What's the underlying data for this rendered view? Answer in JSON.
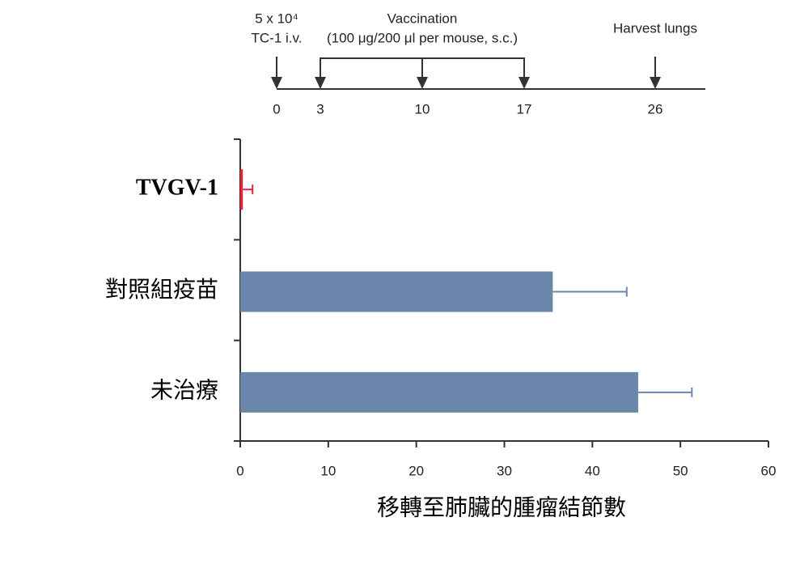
{
  "chart_data": {
    "type": "bar",
    "orientation": "horizontal",
    "timeline": {
      "days": [
        0,
        3,
        10,
        17,
        26
      ],
      "injection_label": [
        "5 x 10⁴",
        "TC-1 i.v."
      ],
      "vaccination_label": [
        "Vaccination",
        "(100 μg/200 μl per mouse, s.c.)"
      ],
      "harvest_label": "Harvest lungs"
    },
    "categories": [
      "TVGV-1",
      "對照組疫苗",
      "未治療"
    ],
    "values": [
      0.3,
      35.5,
      45.2
    ],
    "errors": [
      1.1,
      8.4,
      6.1
    ],
    "colors": [
      "#e8243c",
      "#6a86ab",
      "#6a86ab"
    ],
    "label_colors": [
      "#e8141c",
      "#000000",
      "#000000"
    ],
    "xlim": [
      0,
      60
    ],
    "xticks": [
      0,
      10,
      20,
      30,
      40,
      50,
      60
    ],
    "xlabel": "移轉至肺臟的腫瘤結節數"
  }
}
